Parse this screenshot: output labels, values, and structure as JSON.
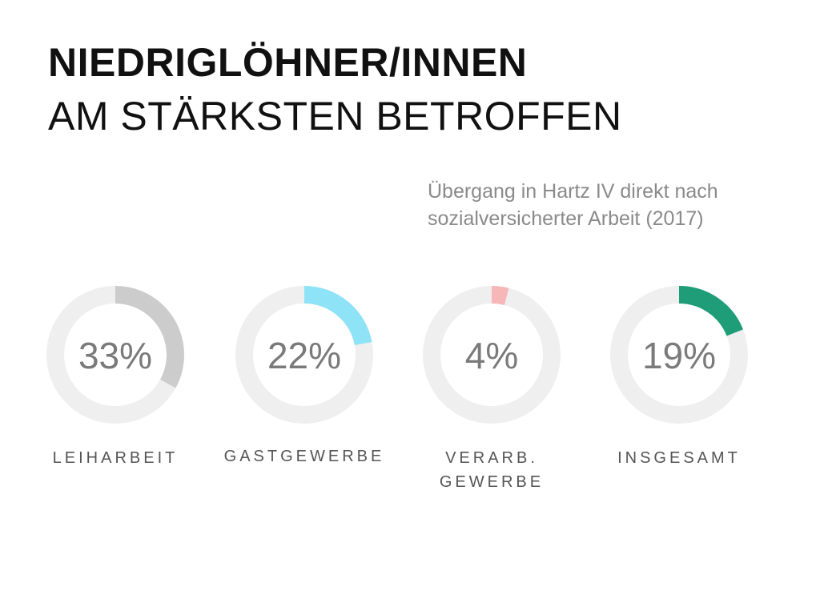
{
  "title_line1": "NIEDRIGLÖHNER/INNEN",
  "title_line2": "AM STÄRKSTEN BETROFFEN",
  "subtitle_lines": [
    "Übergang in Hartz IV direkt nach",
    "sozialversicherter Arbeit (2017)"
  ],
  "colors": {
    "track": "#efefef",
    "leiharbeit": "#cccccc",
    "gastgewerbe": "#8fe3f7",
    "verarb": "#f7b6b8",
    "insgesamt": "#1f9d78"
  },
  "chart_data": {
    "type": "donut",
    "title": "NIEDRIGLÖHNER/INNEN AM STÄRKSTEN BETROFFEN",
    "subtitle": "Übergang in Hartz IV direkt nach sozialversicherter Arbeit (2017)",
    "items": [
      {
        "value": 33,
        "display": "33%",
        "label_lines": [
          "LEIHARBEIT"
        ],
        "color": "#cccccc"
      },
      {
        "value": 22,
        "display": "22%",
        "label_lines": [
          "GASTGEWERBE"
        ],
        "color": "#8fe3f7"
      },
      {
        "value": 4,
        "display": "4%",
        "label_lines": [
          "VERARB.",
          "GEWERBE"
        ],
        "color": "#f7b6b8"
      },
      {
        "value": 19,
        "display": "19%",
        "label_lines": [
          "INSGESAMT"
        ],
        "color": "#1f9d78"
      }
    ]
  }
}
